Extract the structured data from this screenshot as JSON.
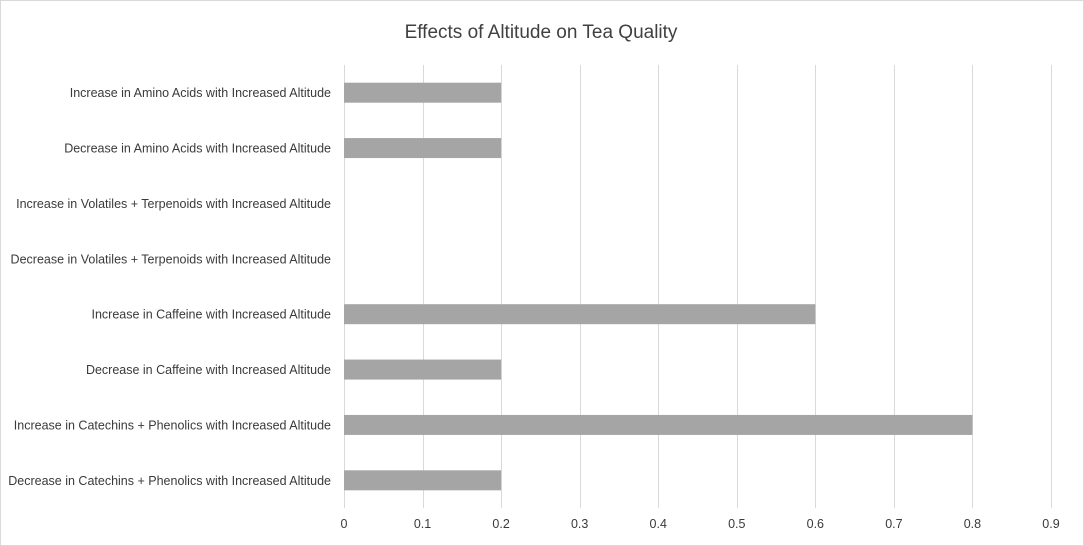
{
  "chart_data": {
    "type": "bar",
    "orientation": "horizontal",
    "title": "Effects of Altitude on Tea Quality",
    "xlabel": "",
    "ylabel": "",
    "categories": [
      "Increase in Amino Acids with Increased Altitude",
      "Decrease in Amino Acids with Increased Altitude",
      "Increase in Volatiles + Terpenoids with Increased Altitude",
      "Decrease in Volatiles + Terpenoids with Increased Altitude",
      "Increase in Caffeine with Increased Altitude",
      "Decrease in Caffeine with Increased Altitude",
      "Increase in Catechins + Phenolics with Increased Altitude",
      "Decrease in Catechins + Phenolics with Increased Altitude"
    ],
    "values": [
      0.2,
      0.2,
      0,
      0,
      0.6,
      0.2,
      0.8,
      0.2
    ],
    "xlim": [
      0,
      0.9
    ],
    "xticks": [
      "0",
      "0.1",
      "0.2",
      "0.3",
      "0.4",
      "0.5",
      "0.6",
      "0.7",
      "0.8",
      "0.9"
    ],
    "grid": true,
    "legend": "none",
    "colors": {
      "bar": "#a5a5a5",
      "grid": "#d9d9d9",
      "frame": "#d9d9d9"
    }
  }
}
